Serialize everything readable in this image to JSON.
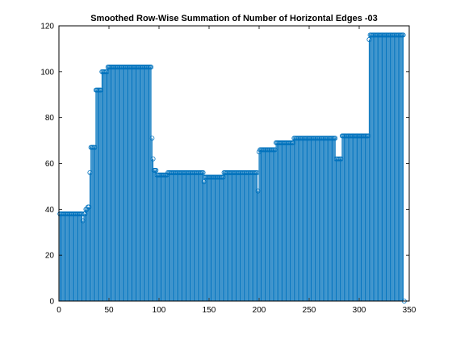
{
  "chart_data": {
    "type": "stem",
    "title": "Smoothed Row-Wise Summation of Number of Horizontal Edges -03",
    "xlabel": "",
    "ylabel": "",
    "xlim": [
      0,
      350
    ],
    "ylim": [
      0,
      120
    ],
    "xticks": [
      0,
      50,
      100,
      150,
      200,
      250,
      300,
      350
    ],
    "yticks": [
      0,
      20,
      40,
      60,
      80,
      100,
      120
    ],
    "grid": false,
    "color": "#0072bd",
    "segments": [
      {
        "x_start": 1,
        "x_end": 23,
        "y": 38
      },
      {
        "x_start": 24,
        "x_end": 24,
        "y": 35
      },
      {
        "x_start": 25,
        "x_end": 26,
        "y": 38
      },
      {
        "x_start": 27,
        "x_end": 28,
        "y": 40
      },
      {
        "x_start": 29,
        "x_end": 30,
        "y": 41
      },
      {
        "x_start": 31,
        "x_end": 31,
        "y": 56
      },
      {
        "x_start": 32,
        "x_end": 36,
        "y": 67
      },
      {
        "x_start": 37,
        "x_end": 42,
        "y": 92
      },
      {
        "x_start": 43,
        "x_end": 48,
        "y": 100
      },
      {
        "x_start": 49,
        "x_end": 92,
        "y": 102
      },
      {
        "x_start": 93,
        "x_end": 93,
        "y": 71
      },
      {
        "x_start": 94,
        "x_end": 94,
        "y": 62
      },
      {
        "x_start": 95,
        "x_end": 97,
        "y": 57
      },
      {
        "x_start": 98,
        "x_end": 108,
        "y": 55
      },
      {
        "x_start": 109,
        "x_end": 144,
        "y": 56
      },
      {
        "x_start": 145,
        "x_end": 145,
        "y": 52
      },
      {
        "x_start": 146,
        "x_end": 164,
        "y": 54
      },
      {
        "x_start": 165,
        "x_end": 198,
        "y": 56
      },
      {
        "x_start": 199,
        "x_end": 199,
        "y": 48
      },
      {
        "x_start": 200,
        "x_end": 200,
        "y": 65
      },
      {
        "x_start": 201,
        "x_end": 216,
        "y": 66
      },
      {
        "x_start": 217,
        "x_end": 234,
        "y": 69
      },
      {
        "x_start": 235,
        "x_end": 276,
        "y": 71
      },
      {
        "x_start": 277,
        "x_end": 282,
        "y": 62
      },
      {
        "x_start": 283,
        "x_end": 309,
        "y": 72
      },
      {
        "x_start": 310,
        "x_end": 310,
        "y": 114
      },
      {
        "x_start": 311,
        "x_end": 344,
        "y": 116
      },
      {
        "x_start": 345,
        "x_end": 345,
        "y": 0
      }
    ]
  }
}
